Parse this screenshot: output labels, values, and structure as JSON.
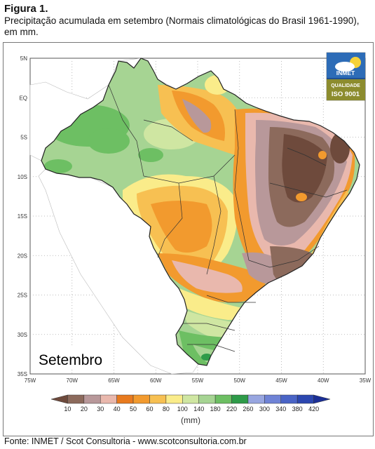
{
  "figure": {
    "title": "Figura 1.",
    "caption": "Precipitação acumulada em setembro (Normais climatológicas do Brasil 1961-1990), em mm.",
    "source": "Fonte: INMET / Scot Consultoria - www.scotconsultoria.com.br"
  },
  "map": {
    "month_label": "Setembro",
    "lat_labels": [
      "5N",
      "EQ",
      "5S",
      "10S",
      "15S",
      "20S",
      "25S",
      "30S",
      "35S"
    ],
    "lon_labels": [
      "75W",
      "70W",
      "65W",
      "60W",
      "55W",
      "50W",
      "45W",
      "40W",
      "35W"
    ]
  },
  "logo": {
    "name": "INMET",
    "quality": "QUALIDADE",
    "iso": "ISO 9001"
  },
  "legend": {
    "unit": "(mm)",
    "values": [
      "10",
      "20",
      "30",
      "40",
      "50",
      "60",
      "80",
      "100",
      "140",
      "180",
      "220",
      "260",
      "300",
      "340",
      "380",
      "420"
    ],
    "colors": [
      "#6e4a3c",
      "#8c6a5c",
      "#b8989a",
      "#e9b8ad",
      "#e87a1e",
      "#f29a2e",
      "#f7c052",
      "#faec8a",
      "#cfe6a2",
      "#a6d493",
      "#6dbf63",
      "#2e9b49",
      "#98a6e0",
      "#6f83d6",
      "#4a64c6",
      "#2c47b0",
      "#1b2f96"
    ]
  }
}
